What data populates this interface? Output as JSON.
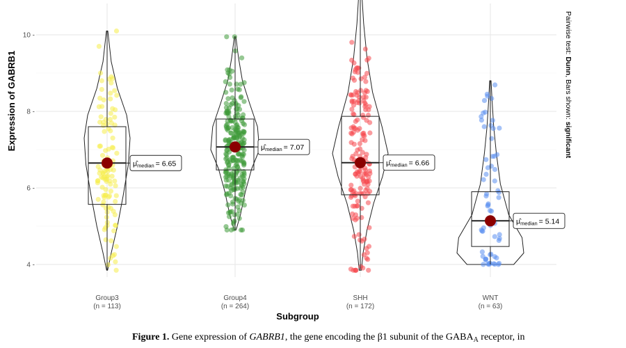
{
  "chart_data": {
    "type": "violin",
    "ylabel": "Expression of GABRB1",
    "xlabel": "Subgroup",
    "ylim": [
      3.7,
      11.0
    ],
    "yticks": [
      4,
      6,
      8,
      10
    ],
    "ytick_labels": [
      "4 -",
      "6 -",
      "8 -",
      "10 -"
    ],
    "grid": true,
    "side_note_prefix": "Pairwise test: ",
    "side_note_test": "Dunn",
    "side_note_mid": ", Bars shown: ",
    "side_note_bars": "significant",
    "median_label_prefix": "μ̂",
    "median_label_sub": "median",
    "groups": [
      {
        "name": "Group3",
        "n_label": "(n = 113)",
        "n": 113,
        "color": "#f5ec4a",
        "min": 3.85,
        "max": 10.1,
        "q1": 5.57,
        "median": 6.65,
        "q3": 7.6,
        "median_text": "= 6.65"
      },
      {
        "name": "Group4",
        "n_label": "(n = 264)",
        "n": 264,
        "color": "#3f9a3a",
        "min": 4.9,
        "max": 9.95,
        "q1": 6.47,
        "median": 7.07,
        "q3": 7.8,
        "median_text": "= 7.07"
      },
      {
        "name": "SHH",
        "n_label": "(n = 172)",
        "n": 172,
        "color": "#f5484f",
        "min": 3.85,
        "max": 11.0,
        "q1": 5.82,
        "median": 6.66,
        "q3": 7.87,
        "median_text": "= 6.66"
      },
      {
        "name": "WNT",
        "n_label": "(n = 63)",
        "n": 63,
        "color": "#5b8ff0",
        "min": 4.0,
        "max": 8.8,
        "q1": 4.47,
        "median": 5.14,
        "q3": 5.9,
        "median_text": "= 5.14"
      }
    ]
  },
  "caption": {
    "fig_label": "Figure 1.",
    "text_before": " Gene expression of ",
    "gene": "GABRB1",
    "text_after": ", the gene encoding the β1 subunit of the GABA",
    "subscript": "A",
    "text_end": " receptor, in"
  }
}
